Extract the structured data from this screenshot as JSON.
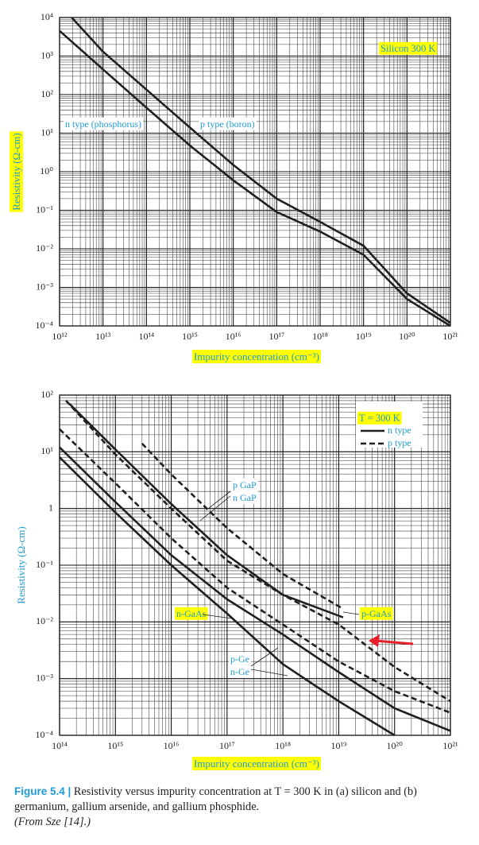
{
  "chart_data": [
    {
      "type": "line",
      "xscale": "log",
      "yscale": "log",
      "grid": true,
      "minor_grid": true,
      "xlabel": "Impurity concentration (cm⁻³)",
      "ylabel": "Resistivity (Ω-cm)",
      "xlim": [
        1000000000000.0,
        1e+21
      ],
      "ylim": [
        0.0001,
        10000.0
      ],
      "xticks": [
        {
          "value": 1000000000000.0,
          "label": "10¹²"
        },
        {
          "value": 10000000000000.0,
          "label": "10¹³"
        },
        {
          "value": 100000000000000.0,
          "label": "10¹⁴"
        },
        {
          "value": 1000000000000000.0,
          "label": "10¹⁵"
        },
        {
          "value": 1e+16,
          "label": "10¹⁶"
        },
        {
          "value": 1e+17,
          "label": "10¹⁷"
        },
        {
          "value": 1e+18,
          "label": "10¹⁸"
        },
        {
          "value": 1e+19,
          "label": "10¹⁹"
        },
        {
          "value": 1e+20,
          "label": "10²⁰"
        },
        {
          "value": 1e+21,
          "label": "10²¹"
        }
      ],
      "yticks": [
        {
          "value": 0.0001,
          "label": "10⁻⁴"
        },
        {
          "value": 0.001,
          "label": "10⁻³"
        },
        {
          "value": 0.01,
          "label": "10⁻²"
        },
        {
          "value": 0.1,
          "label": "10⁻¹"
        },
        {
          "value": 1,
          "label": "10⁰"
        },
        {
          "value": 10,
          "label": "10¹"
        },
        {
          "value": 100,
          "label": "10²"
        },
        {
          "value": 1000,
          "label": "10³"
        },
        {
          "value": 10000,
          "label": "10⁴"
        }
      ],
      "annotations": [
        "Silicon 300 K"
      ],
      "series": [
        {
          "name": "n type (phosphorus)",
          "color": "#231f20",
          "dash": false,
          "x": [
            1000000000000.0,
            10000000000000.0,
            100000000000000.0,
            1000000000000000.0,
            1e+16,
            1e+17,
            1e+18,
            1e+19,
            1e+20,
            1e+21
          ],
          "values": [
            4500,
            450,
            46,
            4.8,
            0.6,
            0.09,
            0.028,
            0.007,
            0.0005,
            0.0001
          ]
        },
        {
          "name": "p type (boron)",
          "color": "#231f20",
          "dash": false,
          "x": [
            1900000000000.0,
            10000000000000.0,
            100000000000000.0,
            1000000000000000.0,
            1e+16,
            1e+17,
            1e+18,
            1e+19,
            1e+20,
            1e+21
          ],
          "values": [
            10000,
            1300,
            135,
            14,
            1.5,
            0.2,
            0.05,
            0.012,
            0.0007,
            0.00012
          ]
        }
      ]
    },
    {
      "type": "line",
      "xscale": "log",
      "yscale": "log",
      "grid": true,
      "minor_grid": true,
      "xlabel": "Impurity concentration (cm⁻³)",
      "ylabel": "Resistivity (Ω-cm)",
      "xlim": [
        100000000000000.0,
        1e+21
      ],
      "ylim": [
        0.0001,
        100
      ],
      "xticks": [
        {
          "value": 100000000000000.0,
          "label": "10¹⁴"
        },
        {
          "value": 1000000000000000.0,
          "label": "10¹⁵"
        },
        {
          "value": 1e+16,
          "label": "10¹⁶"
        },
        {
          "value": 1e+17,
          "label": "10¹⁷"
        },
        {
          "value": 1e+18,
          "label": "10¹⁸"
        },
        {
          "value": 1e+19,
          "label": "10¹⁹"
        },
        {
          "value": 1e+20,
          "label": "10²⁰"
        },
        {
          "value": 1e+21,
          "label": "10²¹"
        }
      ],
      "yticks": [
        {
          "value": 0.0001,
          "label": "10⁻⁴"
        },
        {
          "value": 0.001,
          "label": "10⁻³"
        },
        {
          "value": 0.01,
          "label": "10⁻²"
        },
        {
          "value": 0.1,
          "label": "10⁻¹"
        },
        1,
        {
          "value": 10,
          "label": "10¹"
        },
        {
          "value": 100,
          "label": "10²"
        }
      ],
      "legend": {
        "title": "T = 300 K",
        "position": "upper right",
        "entries": [
          {
            "name": "n type",
            "dash": false
          },
          {
            "name": "p type",
            "dash": true
          }
        ]
      },
      "series": [
        {
          "name": "p GaP",
          "color": "#231f20",
          "dash": true,
          "x": [
            3000000000000000.0,
            1e+16,
            1e+17,
            1e+18,
            1.2e+19
          ],
          "values": [
            14,
            4,
            0.45,
            0.07,
            0.017
          ]
        },
        {
          "name": "n GaP",
          "color": "#231f20",
          "dash": false,
          "x": [
            150000000000000.0,
            1000000000000000.0,
            1e+16,
            1e+17,
            1e+18,
            1.2e+19
          ],
          "values": [
            70,
            11,
            1.2,
            0.15,
            0.03,
            0.012
          ]
        },
        {
          "name": "n-GaAs",
          "color": "#231f20",
          "dash": false,
          "x": [
            100000000000000.0,
            1000000000000000.0,
            1e+16,
            1e+17,
            1e+18,
            1e+19,
            1e+20
          ],
          "values": [
            8,
            0.85,
            0.1,
            0.014,
            0.0018,
            0.0004,
            0.0001
          ]
        },
        {
          "name": "p-GaAs",
          "color": "#231f20",
          "dash": true,
          "x": [
            130000000000000.0,
            1000000000000000.0,
            1e+16,
            1e+17,
            1e+18,
            1e+19,
            1e+20,
            1e+21
          ],
          "values": [
            80,
            9,
            1,
            0.12,
            0.03,
            0.009,
            0.0016,
            0.0004
          ]
        },
        {
          "name": "p-Ge",
          "color": "#231f20",
          "dash": true,
          "x": [
            100000000000000.0,
            1000000000000000.0,
            1e+16,
            1e+17,
            1e+18,
            1e+19,
            1e+20,
            1e+21
          ],
          "values": [
            25,
            2.8,
            0.3,
            0.04,
            0.009,
            0.002,
            0.0006,
            0.00025
          ]
        },
        {
          "name": "n-Ge",
          "color": "#231f20",
          "dash": false,
          "x": [
            100000000000000.0,
            1000000000000000.0,
            1e+16,
            1e+17,
            1e+18,
            1e+19,
            1e+20,
            1e+21
          ],
          "values": [
            12,
            1.3,
            0.15,
            0.025,
            0.006,
            0.0013,
            0.0003,
            0.00012
          ]
        }
      ]
    }
  ],
  "caption": {
    "label": "Figure 5.4 |",
    "text": "Resistivity versus impurity concentration at T = 300 K in (a) silicon and (b) germanium, gallium arsenide, and gallium phosphide.",
    "source": "(From Sze [14].)"
  }
}
